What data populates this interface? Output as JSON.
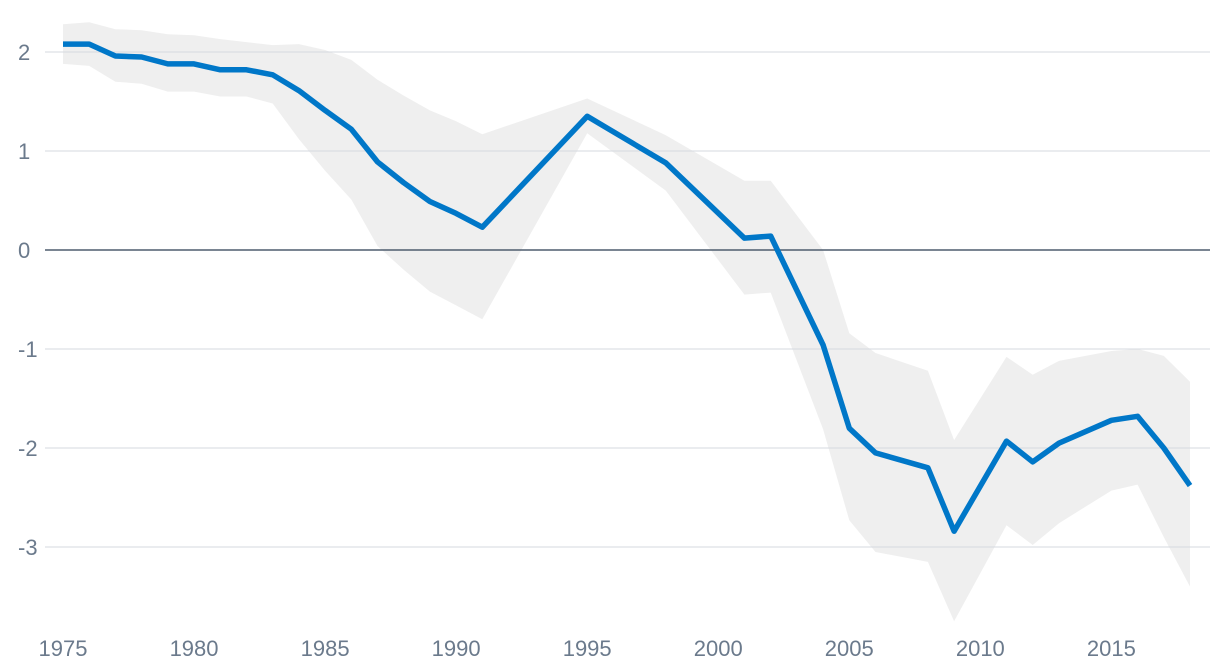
{
  "chart_data": {
    "type": "line",
    "title": "",
    "xlabel": "",
    "ylabel": "",
    "xlim": [
      1975,
      2018
    ],
    "ylim": [
      -3.75,
      2.4
    ],
    "x_ticks": [
      1975,
      1980,
      1985,
      1990,
      1995,
      2000,
      2005,
      2010,
      2015
    ],
    "x_tick_labels": [
      "1975",
      "1980",
      "1985",
      "1990",
      "1995",
      "2000",
      "2005",
      "2010",
      "2015"
    ],
    "y_ticks": [
      2,
      1,
      0,
      -1,
      -2,
      -3
    ],
    "y_tick_labels": [
      "2",
      "1",
      "0",
      "-1",
      "-2",
      "-3"
    ],
    "grid": true,
    "legend": "none",
    "colors": {
      "line": "#0077c8",
      "band": "#efefef",
      "grid": "#d4d8df",
      "zero_line": "#4f5d6f",
      "tick_text": "#6b7a8c"
    },
    "series": [
      {
        "x": [
          1975,
          1976,
          1977,
          1978,
          1979,
          1980,
          1981,
          1982,
          1983,
          1984,
          1985,
          1986,
          1987,
          1988,
          1989,
          1990,
          1991,
          1995,
          1998,
          2001,
          2002,
          2004,
          2005,
          2006,
          2008,
          2009,
          2011,
          2012,
          2013,
          2015,
          2016,
          2017,
          2018
        ],
        "values": [
          2.08,
          2.08,
          1.96,
          1.95,
          1.88,
          1.88,
          1.82,
          1.82,
          1.77,
          1.61,
          1.41,
          1.22,
          0.89,
          0.68,
          0.49,
          0.37,
          0.23,
          1.35,
          0.88,
          0.12,
          0.14,
          -0.96,
          -1.8,
          -2.05,
          -2.2,
          -2.84,
          -1.93,
          -2.14,
          -1.95,
          -1.72,
          -1.68,
          -2.0,
          -2.38
        ]
      }
    ],
    "band": {
      "x": [
        1975,
        1976,
        1977,
        1978,
        1979,
        1980,
        1981,
        1982,
        1983,
        1984,
        1985,
        1986,
        1987,
        1988,
        1989,
        1990,
        1991,
        1995,
        1998,
        2001,
        2002,
        2004,
        2005,
        2006,
        2008,
        2009,
        2011,
        2012,
        2013,
        2015,
        2016,
        2017,
        2018
      ],
      "upper": [
        2.28,
        2.3,
        2.23,
        2.22,
        2.18,
        2.17,
        2.13,
        2.1,
        2.07,
        2.08,
        2.02,
        1.92,
        1.72,
        1.56,
        1.41,
        1.3,
        1.17,
        1.53,
        1.16,
        0.7,
        0.7,
        0.0,
        -0.84,
        -1.04,
        -1.22,
        -1.92,
        -1.08,
        -1.26,
        -1.12,
        -1.02,
        -1.0,
        -1.07,
        -1.33
      ],
      "lower": [
        1.88,
        1.86,
        1.7,
        1.68,
        1.6,
        1.6,
        1.55,
        1.55,
        1.48,
        1.12,
        0.8,
        0.51,
        0.04,
        -0.2,
        -0.42,
        -0.56,
        -0.7,
        1.18,
        0.6,
        -0.45,
        -0.43,
        -1.81,
        -2.73,
        -3.05,
        -3.15,
        -3.75,
        -2.78,
        -2.98,
        -2.76,
        -2.43,
        -2.37,
        -2.9,
        -3.4
      ]
    }
  }
}
